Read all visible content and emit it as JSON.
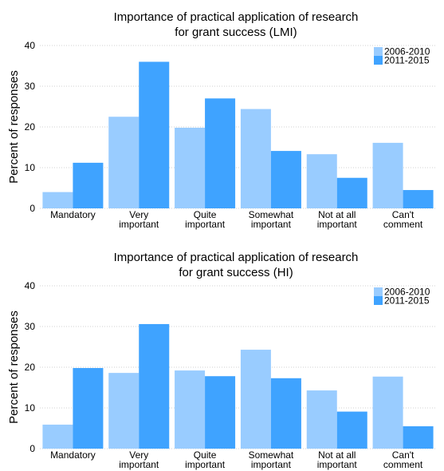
{
  "chart_data": [
    {
      "type": "bar",
      "title_lines": [
        "Importance of practical application of research",
        "for grant success (LMI)"
      ],
      "xlabel": "",
      "ylabel": "Percent of responses",
      "ylim": [
        0,
        40
      ],
      "yticks": [
        "0",
        "10",
        "20",
        "30",
        "40"
      ],
      "grid": true,
      "legend_position": "top-right",
      "categories": [
        [
          "Mandatory"
        ],
        [
          "Very",
          "important"
        ],
        [
          "Quite",
          "important"
        ],
        [
          "Somewhat",
          "important"
        ],
        [
          "Not at all",
          "important"
        ],
        [
          "Can't",
          "comment"
        ]
      ],
      "series": [
        {
          "name": "2006-2010",
          "color": "#99ccff",
          "values": [
            4.0,
            22.5,
            19.8,
            24.4,
            13.3,
            16.1
          ]
        },
        {
          "name": "2011-2015",
          "color": "#3fa3ff",
          "values": [
            11.2,
            36.0,
            27.0,
            14.1,
            7.5,
            4.5
          ]
        }
      ]
    },
    {
      "type": "bar",
      "title_lines": [
        "Importance of practical application of research",
        "for grant success (HI)"
      ],
      "xlabel": "",
      "ylabel": "Percent of responses",
      "ylim": [
        0,
        40
      ],
      "yticks": [
        "0",
        "10",
        "20",
        "30",
        "40"
      ],
      "grid": true,
      "legend_position": "top-right",
      "categories": [
        [
          "Mandatory"
        ],
        [
          "Very",
          "important"
        ],
        [
          "Quite",
          "important"
        ],
        [
          "Somewhat",
          "important"
        ],
        [
          "Not at all",
          "important"
        ],
        [
          "Can't",
          "comment"
        ]
      ],
      "series": [
        {
          "name": "2006-2010",
          "color": "#99ccff",
          "values": [
            5.9,
            18.6,
            19.2,
            24.3,
            14.3,
            17.7
          ]
        },
        {
          "name": "2011-2015",
          "color": "#3fa3ff",
          "values": [
            19.8,
            30.6,
            17.8,
            17.3,
            9.1,
            5.5
          ]
        }
      ]
    }
  ]
}
